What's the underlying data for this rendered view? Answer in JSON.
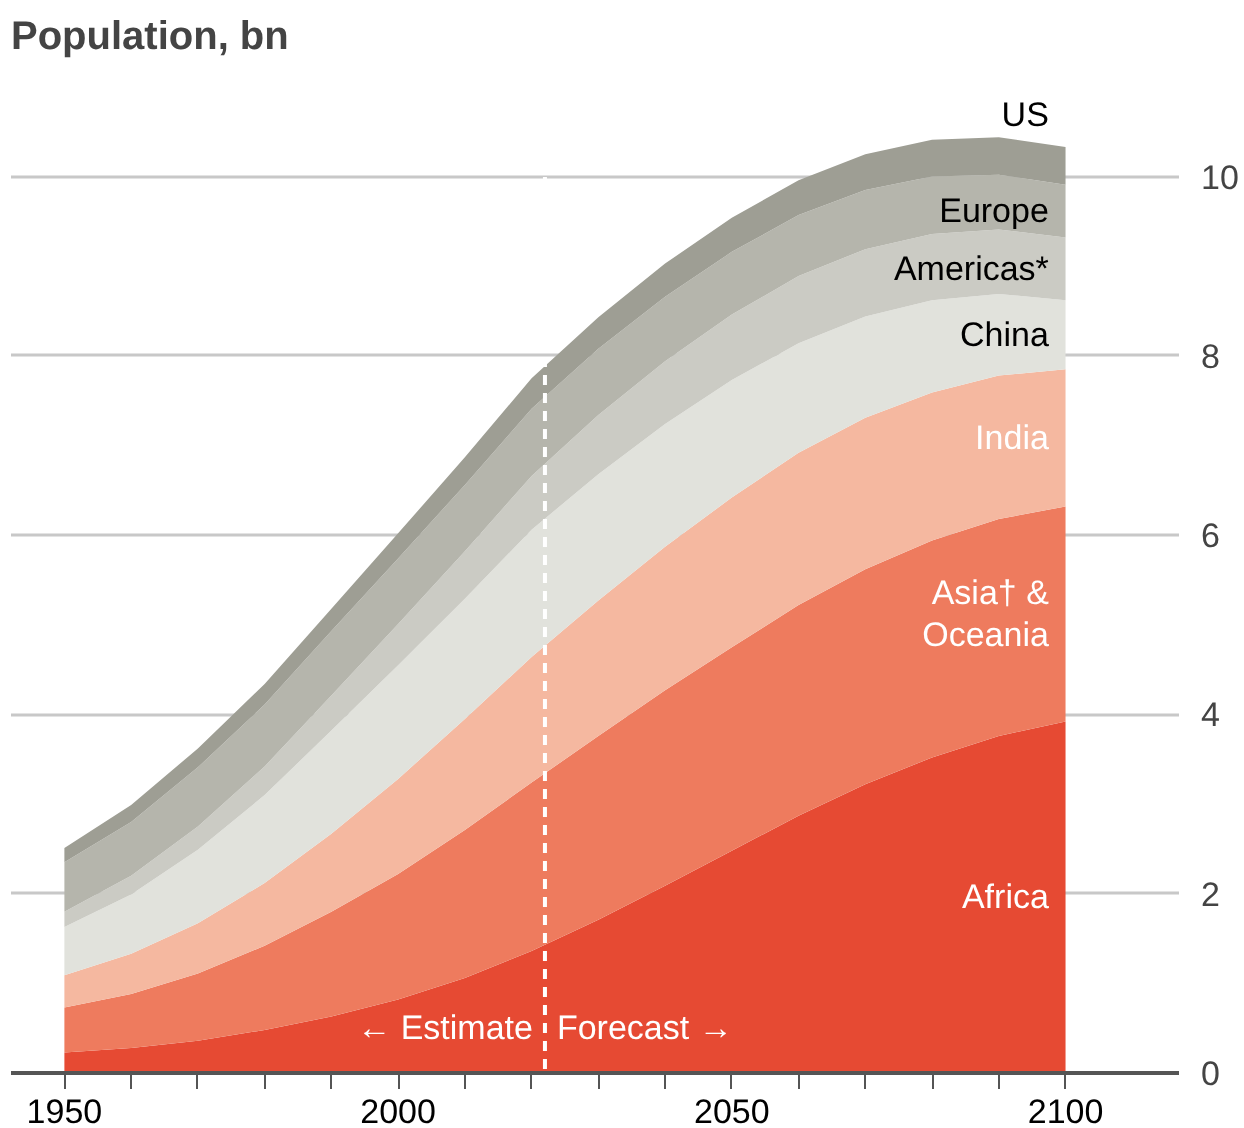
{
  "chart_data": {
    "type": "area",
    "stacked": true,
    "title": "Population, bn",
    "x": [
      1950,
      1960,
      1970,
      1980,
      1990,
      2000,
      2010,
      2020,
      2030,
      2040,
      2050,
      2060,
      2070,
      2080,
      2090,
      2100
    ],
    "series": [
      {
        "name": "Africa",
        "color": "#e64a33",
        "values": [
          0.23,
          0.28,
          0.36,
          0.48,
          0.63,
          0.82,
          1.06,
          1.36,
          1.71,
          2.09,
          2.48,
          2.87,
          3.22,
          3.52,
          3.76,
          3.92
        ]
      },
      {
        "name": "Asia† & Oceania",
        "color": "#ee7b5e",
        "values": [
          0.5,
          0.6,
          0.75,
          0.94,
          1.17,
          1.4,
          1.65,
          1.88,
          2.05,
          2.18,
          2.27,
          2.35,
          2.4,
          2.42,
          2.42,
          2.4
        ]
      },
      {
        "name": "India",
        "color": "#f5b8a0",
        "values": [
          0.36,
          0.45,
          0.56,
          0.7,
          0.87,
          1.06,
          1.24,
          1.4,
          1.51,
          1.6,
          1.67,
          1.7,
          1.69,
          1.65,
          1.6,
          1.53
        ]
      },
      {
        "name": "China",
        "color": "#e1e2dc",
        "values": [
          0.54,
          0.66,
          0.82,
          0.98,
          1.15,
          1.27,
          1.34,
          1.42,
          1.41,
          1.37,
          1.31,
          1.22,
          1.13,
          1.03,
          0.91,
          0.77
        ]
      },
      {
        "name": "Americas*",
        "color": "#cbcbc4",
        "values": [
          0.17,
          0.21,
          0.26,
          0.32,
          0.39,
          0.46,
          0.53,
          0.6,
          0.66,
          0.7,
          0.73,
          0.75,
          0.75,
          0.74,
          0.72,
          0.7
        ]
      },
      {
        "name": "Europe",
        "color": "#b5b5ac",
        "values": [
          0.55,
          0.6,
          0.66,
          0.69,
          0.72,
          0.73,
          0.74,
          0.75,
          0.74,
          0.72,
          0.7,
          0.68,
          0.66,
          0.64,
          0.61,
          0.59
        ]
      },
      {
        "name": "US",
        "color": "#9e9e94",
        "values": [
          0.16,
          0.19,
          0.21,
          0.23,
          0.25,
          0.28,
          0.31,
          0.34,
          0.35,
          0.37,
          0.38,
          0.39,
          0.4,
          0.41,
          0.42,
          0.42
        ]
      }
    ],
    "xlim": [
      1942,
      2117
    ],
    "ylim": [
      0,
      11.2
    ],
    "xticks": [
      1950,
      {
        "value": 1960,
        "label": null
      },
      {
        "value": 1970,
        "label": null
      },
      {
        "value": 1980,
        "label": null
      },
      {
        "value": 1990,
        "label": null
      },
      2000,
      {
        "value": 2010,
        "label": null
      },
      {
        "value": 2020,
        "label": null
      },
      {
        "value": 2030,
        "label": null
      },
      {
        "value": 2040,
        "label": null
      },
      2050,
      {
        "value": 2060,
        "label": null
      },
      {
        "value": 2070,
        "label": null
      },
      {
        "value": 2080,
        "label": null
      },
      {
        "value": 2090,
        "label": null
      },
      2100
    ],
    "yticks": [
      0,
      2,
      4,
      6,
      8,
      10
    ],
    "grid": "y",
    "ref_lines": [
      {
        "axis": "x",
        "value": 2022,
        "color": "#ffffff",
        "line_style": "dashed"
      }
    ],
    "annotations": [
      "← Estimate",
      "Forecast →"
    ]
  }
}
